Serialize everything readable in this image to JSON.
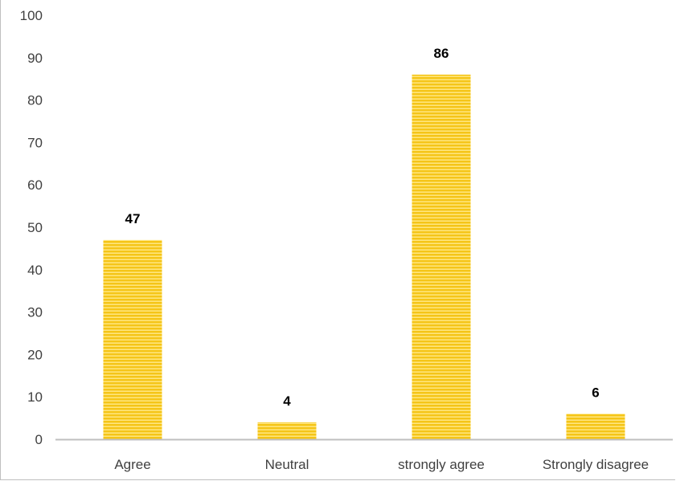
{
  "chart_data": {
    "type": "bar",
    "categories": [
      "Agree",
      "Neutral",
      "strongly agree",
      "Strongly disagree"
    ],
    "values": [
      47,
      4,
      86,
      6
    ],
    "ylim": [
      0,
      100
    ],
    "yticks": [
      0,
      10,
      20,
      30,
      40,
      50,
      60,
      70,
      80,
      90,
      100
    ],
    "data_labels": [
      "47",
      "4",
      "86",
      "6"
    ],
    "grid": false,
    "legend": "none",
    "bar_color": "#F5C518",
    "bar_stripe_color": "#FFE680",
    "axis_color": "#bfbfbf"
  }
}
